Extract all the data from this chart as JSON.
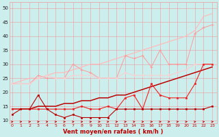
{
  "x": [
    0,
    1,
    2,
    3,
    4,
    5,
    6,
    7,
    8,
    9,
    10,
    11,
    12,
    13,
    14,
    15,
    16,
    17,
    18,
    19,
    20,
    21,
    22,
    23
  ],
  "line_pale_straight": [
    23,
    24,
    25,
    25,
    26,
    27,
    27,
    28,
    29,
    30,
    30,
    31,
    32,
    33,
    34,
    35,
    36,
    37,
    38,
    39,
    40,
    42,
    47,
    48
  ],
  "line_pink_zigzag": [
    23,
    23,
    23,
    26,
    25,
    25,
    25,
    30,
    28,
    27,
    25,
    25,
    25,
    33,
    32,
    33,
    29,
    35,
    30,
    30,
    30,
    41,
    43,
    44
  ],
  "line_pink_lower": [
    23,
    23,
    23,
    25,
    26,
    25,
    25,
    26,
    26,
    26,
    25,
    25,
    25,
    27,
    26,
    26,
    26,
    26,
    26,
    27,
    28,
    30,
    30,
    30
  ],
  "line_dark_slope": [
    14,
    14,
    14,
    15,
    15,
    15,
    16,
    16,
    17,
    17,
    18,
    18,
    19,
    19,
    20,
    21,
    22,
    23,
    24,
    25,
    26,
    27,
    28,
    29
  ],
  "line_red_zigzag": [
    14,
    14,
    14,
    14,
    14,
    14,
    14,
    14,
    15,
    14,
    14,
    15,
    14,
    18,
    19,
    14,
    23,
    19,
    18,
    18,
    18,
    23,
    30,
    30
  ],
  "line_red_bottom": [
    12,
    14,
    14,
    19,
    14,
    12,
    11,
    12,
    11,
    11,
    11,
    11,
    14,
    14,
    14,
    14,
    14,
    14,
    14,
    14,
    14,
    14,
    14,
    15
  ],
  "bg_color": "#cceeed",
  "grid_color": "#ee9999",
  "color_pale": "#ffbbbb",
  "color_pink": "#ff9999",
  "color_pink_lower": "#ffcccc",
  "color_dark": "#bb0000",
  "color_red": "#ee2222",
  "ylabel_vals": [
    10,
    15,
    20,
    25,
    30,
    35,
    40,
    45,
    50
  ],
  "xlabel": "Vent moyen/en rafales ( km/h )",
  "ymin": 9,
  "ymax": 52,
  "xmin": -0.3,
  "xmax": 23.5
}
